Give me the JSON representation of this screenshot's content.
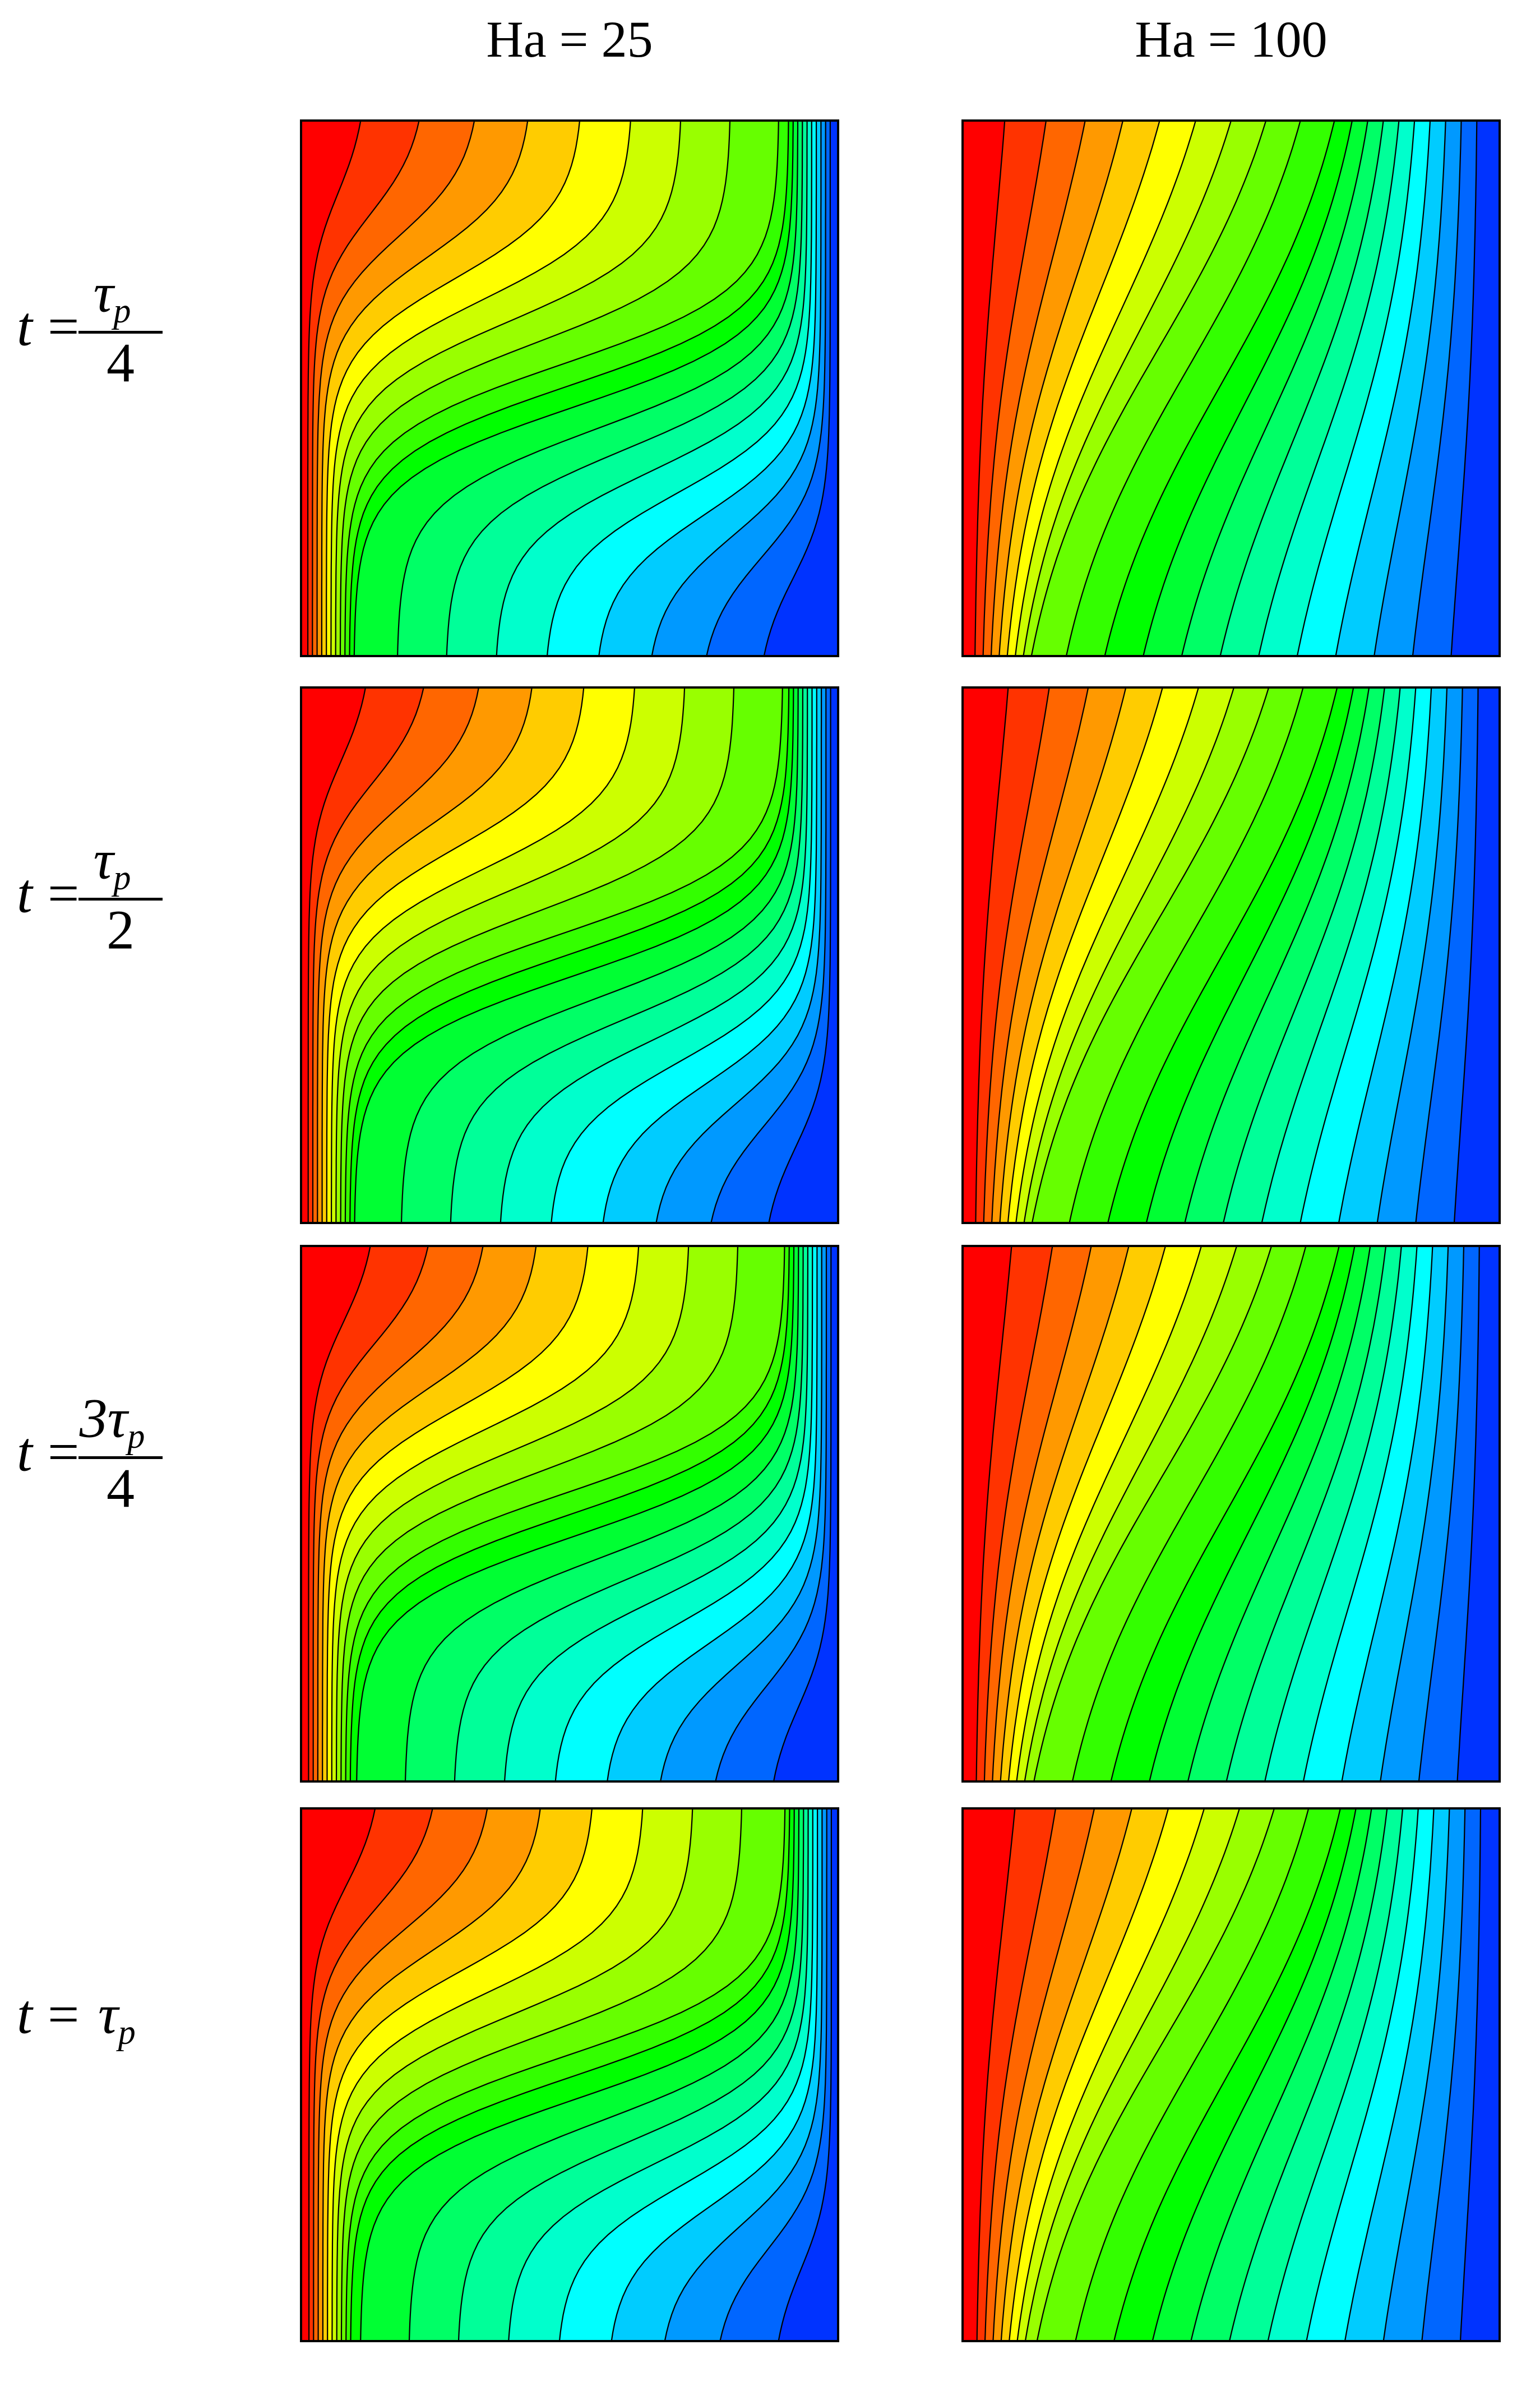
{
  "column_headers": [
    "Ha = 25",
    "Ha = 100"
  ],
  "row_labels": [
    {
      "variable": "t",
      "relation": "=",
      "numerator": "τ",
      "subscript": "p",
      "denominator": "4"
    },
    {
      "variable": "t",
      "relation": "=",
      "numerator": "τ",
      "subscript": "p",
      "denominator": "2"
    },
    {
      "variable": "t",
      "relation": "=",
      "numerator": "3τ",
      "subscript": "p",
      "denominator": "4"
    },
    {
      "variable": "t",
      "relation": "=",
      "symbol": "τ",
      "subscript": "p"
    }
  ]
}
